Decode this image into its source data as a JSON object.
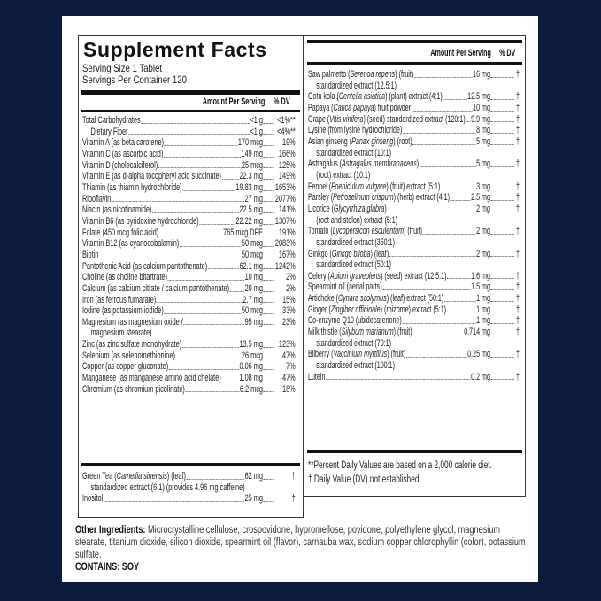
{
  "colors": {
    "background": "#0c1a3c",
    "panel": "#ffffff",
    "text": "#222222"
  },
  "left": {
    "title": "Supplement Facts",
    "serving_size": "Serving Size 1 Tablet",
    "servings_per_container": "Servings Per Container 120",
    "header_amount": "Amount Per Serving",
    "header_dv": "% DV",
    "rows": [
      {
        "name": "Total Carbohydrates",
        "amount": "<1 g",
        "dv": "<1%**"
      },
      {
        "name": "Dietary Fiber",
        "amount": "<1 g",
        "dv": "<4%**",
        "indent": true
      },
      {
        "name": "Vitamin A (as beta carotene)",
        "amount": "170 mcg",
        "dv": "19%"
      },
      {
        "name": "Vitamin C (as ascorbic acid)",
        "amount": "149 mg",
        "dv": "166%"
      },
      {
        "name": "Vitamin D (cholecalciferol)",
        "amount": "25 mcg",
        "dv": "125%"
      },
      {
        "name": "Vitamin E (as d-alpha tocopheryl acid succinate)",
        "amount": "22.3 mg",
        "dv": "149%"
      },
      {
        "name": "Thiamin (as thiamin hydrochloride)",
        "amount": "19.83 mg",
        "dv": "1653%"
      },
      {
        "name": "Riboflavin",
        "amount": "27 mg",
        "dv": "2077%"
      },
      {
        "name": "Niacin (as nicotinamide)",
        "amount": "22.5 mg",
        "dv": "141%"
      },
      {
        "name": "Vitamin B6 (as pyridoxine hydrochloride)",
        "amount": "22.22 mg",
        "dv": "1307%"
      },
      {
        "name": "Folate (450 mcg folic acid)",
        "amount": "765 mcg DFE",
        "dv": "191%"
      },
      {
        "name": "Vitamin B12 (as cyanocobalamin)",
        "amount": "50 mcg",
        "dv": "2083%"
      },
      {
        "name": "Biotin",
        "amount": "50 mcg",
        "dv": "167%"
      },
      {
        "name": "Pantothenic Acid (as calcium pantothenate)",
        "amount": "62.1 mg",
        "dv": "1242%"
      },
      {
        "name": "Choline (as choline bitartrate)",
        "amount": "10 mg",
        "dv": "2%"
      },
      {
        "name": "Calcium (as calcium citrate / calcium pantothenate)",
        "amount": "20 mg",
        "dv": "2%"
      },
      {
        "name": "Iron (as ferrous fumarate)",
        "amount": "2.7 mg",
        "dv": "15%"
      },
      {
        "name": "Iodine (as potassium iodide)",
        "amount": "50 mcg",
        "dv": "33%"
      },
      {
        "name": "Magnesium (as magnesium oxide /",
        "sub": "magnesium stearate)",
        "amount": "95 mg",
        "dv": "23%"
      },
      {
        "name": "Zinc (as zinc sulfate monohydrate)",
        "amount": "13.5 mg",
        "dv": "123%"
      },
      {
        "name": "Selenium (as selenomethionine)",
        "amount": "26 mcg",
        "dv": "47%"
      },
      {
        "name": "Copper (as copper gluconate)",
        "amount": "0.06 mg",
        "dv": "7%"
      },
      {
        "name": "Manganese (as manganese amino acid chelate)",
        "amount": "1.08 mg",
        "dv": "47%"
      },
      {
        "name": "Chromium (as chromium picolinate)",
        "amount": "6.2 mcg",
        "dv": "18%"
      }
    ],
    "rows2": [
      {
        "name": "Green Tea (",
        "latin": "Camellia sinensis",
        "post": ") (leaf)",
        "sub": "standardized extract (6:1) (provides 4.96 mg caffeine)",
        "amount": "62 mg",
        "dv": "†"
      },
      {
        "name": "Inositol",
        "amount": "25 mg",
        "dv": "†"
      }
    ]
  },
  "right": {
    "header_amount": "Amount Per Serving",
    "header_dv": "% DV",
    "rows": [
      {
        "name": "Saw palmetto (",
        "latin": "Serenoa repens",
        "post": ") (fruit)",
        "sub": "standardized extract (12.5:1)",
        "amount": "16 mg",
        "dv": "†"
      },
      {
        "name": "Gotu kola (",
        "latin": "Centella asiatica",
        "post": ") (plant) extract (4:1)",
        "amount": "12.5 mg",
        "dv": "†"
      },
      {
        "name": "Papaya (",
        "latin": "Carica papaya",
        "post": ") fruit powder",
        "amount": "10 mg",
        "dv": "†"
      },
      {
        "name": "Grape (",
        "latin": "Vitis vinifera",
        "post": ") (seed) standardized extract (120:1)",
        "amount": "9.9 mg",
        "dv": "†"
      },
      {
        "name": "Lysine (from lysine hydrochloride)",
        "amount": "8 mg",
        "dv": "†"
      },
      {
        "name": "Asian ginseng (",
        "latin": "Panax ginseng",
        "post": ") (root)",
        "sub": "standardized extract (10:1)",
        "amount": "5 mg",
        "dv": "†"
      },
      {
        "name": "Astragalus (",
        "latin": "Astragalus membranaceus",
        "post": ")",
        "sub": "(root) extract (10:1)",
        "amount": "5 mg",
        "dv": "†"
      },
      {
        "name": "Fennel (",
        "latin": "Foeniculum vulgare",
        "post": ") (fruit) extract (5:1)",
        "amount": "3 mg",
        "dv": "†"
      },
      {
        "name": "Parsley (",
        "latin": "Petroselinum crispum",
        "post": ") (herb) extract (4:1)",
        "amount": "2.5 mg",
        "dv": "†"
      },
      {
        "name": "Licorice (",
        "latin": "Glycyrrhiza glabra",
        "post": ")",
        "sub": "(root and stolon) extract (5:1)",
        "amount": "2 mg",
        "dv": "†"
      },
      {
        "name": "Tomato (",
        "latin": "Lycopersicon esculentum",
        "post": ") (fruit)",
        "sub": "standardized extract (350:1)",
        "amount": "2 mg",
        "dv": "†"
      },
      {
        "name": "Ginkgo (",
        "latin": "Ginkgo biloba",
        "post": ") (leaf)",
        "sub": "standardized extract (50:1)",
        "amount": "2 mg",
        "dv": "†"
      },
      {
        "name": "Celery (",
        "latin": "Apium graveolens",
        "post": ") (seed) extract (12.5:1)",
        "amount": "1.6 mg",
        "dv": "†"
      },
      {
        "name": "Spearmint oil (aerial parts)",
        "amount": "1.5 mg",
        "dv": "†"
      },
      {
        "name": "Artichoke (",
        "latin": "Cynara scolymus",
        "post": ") (leaf) extract (50:1)",
        "amount": "1 mg",
        "dv": "†"
      },
      {
        "name": "Ginger (",
        "latin": "Zingiber officinale",
        "post": ") (rhizome) extract (5:1)",
        "amount": "1 mg",
        "dv": "†"
      },
      {
        "name": "Co-enzyme Q10 (ubidecarenone)",
        "amount": "1 mg",
        "dv": "†"
      },
      {
        "name": "Milk thistle (",
        "latin": "Silybum marianum",
        "post": ") (fruit)",
        "sub": "standardized extract (70:1)",
        "amount": "0.714 mg",
        "dv": "†"
      },
      {
        "name": "Bilberry (",
        "latin": "Vaccinium myrtillus",
        "post": ") (fruit)",
        "sub": "standardized extract (100:1)",
        "amount": "0.25 mg",
        "dv": "†"
      },
      {
        "name": "Lutein",
        "amount": "0.2 mg",
        "dv": "†"
      }
    ],
    "footnote_1": "**Percent Daily Values are based on a 2,000 calorie diet.",
    "footnote_2": "† Daily Value (DV) not established"
  },
  "other_ingredients": {
    "label": "Other Ingredients:",
    "text": " Microcrystalline cellulose, crospovidone, hypromellose, povidone, polyethylene glycol, magnesium stearate, titanium dioxide, silicon dioxide, spearmint oil (flavor), carnauba wax, sodium copper chlorophyllin (color), potassium sulfate.",
    "contains": "CONTAINS: SOY"
  }
}
